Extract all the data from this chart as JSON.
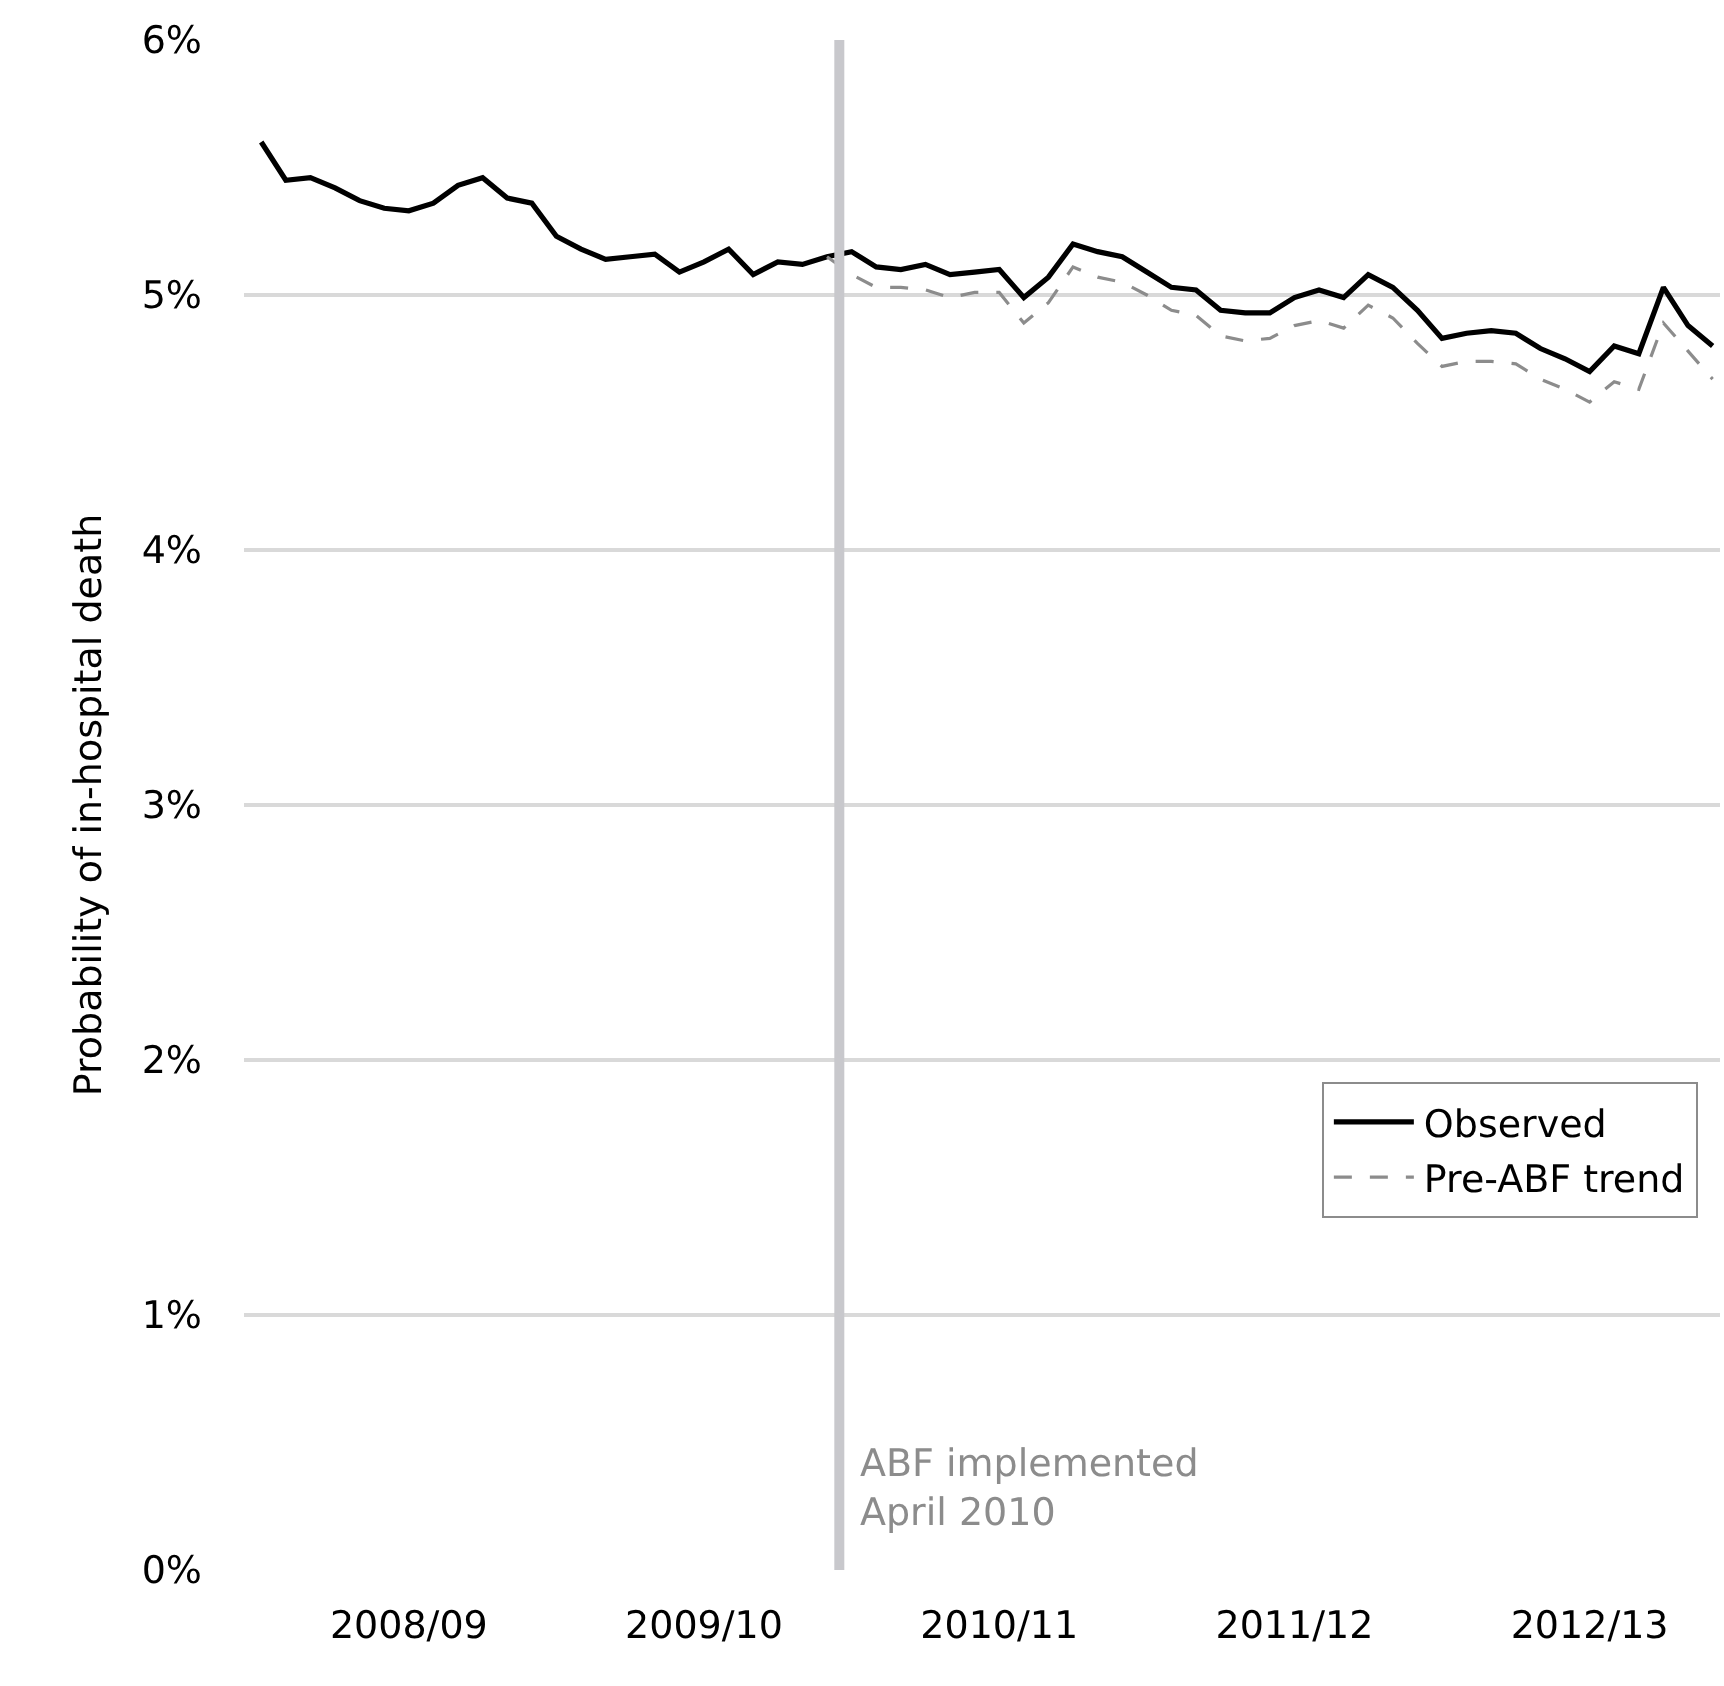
{
  "chart_data": {
    "type": "line",
    "ylabel": "Probability of in-hospital death",
    "categories": [
      null,
      null,
      null,
      null,
      null,
      null,
      "2008/09",
      null,
      null,
      null,
      null,
      null,
      null,
      null,
      null,
      null,
      null,
      null,
      "2009/10",
      null,
      null,
      null,
      null,
      null,
      null,
      null,
      null,
      null,
      null,
      null,
      "2010/11",
      null,
      null,
      null,
      null,
      null,
      null,
      null,
      null,
      null,
      null,
      null,
      "2011/12",
      null,
      null,
      null,
      null,
      null,
      null,
      null,
      null,
      null,
      null,
      null,
      "2012/13",
      null,
      null,
      null,
      null,
      null
    ],
    "ylim": [
      0,
      6
    ],
    "yticks": [
      {
        "value": 0,
        "label": "0%"
      },
      {
        "value": 1,
        "label": "1%"
      },
      {
        "value": 2,
        "label": "2%"
      },
      {
        "value": 3,
        "label": "3%"
      },
      {
        "value": 4,
        "label": "4%"
      },
      {
        "value": 5,
        "label": "5%"
      },
      {
        "value": 6,
        "label": "6%"
      }
    ],
    "grid": "y",
    "legend": "bottom right",
    "marker": "none",
    "ref_lines": [
      {
        "axis": "x",
        "label": "ABF implemented\nApril 2010",
        "color": "#c8c8cc"
      }
    ],
    "series": [
      {
        "name": "Observed",
        "color": "#000000",
        "line_style": "solid",
        "values": [
          5.6,
          5.45,
          5.46,
          5.42,
          5.37,
          5.34,
          5.33,
          5.36,
          5.43,
          5.46,
          5.38,
          5.36,
          5.23,
          5.18,
          5.14,
          5.15,
          5.16,
          5.09,
          5.13,
          5.18,
          5.08,
          5.13,
          5.12,
          5.15,
          5.17,
          5.11,
          5.1,
          5.12,
          5.08,
          5.09,
          5.1,
          4.99,
          5.07,
          5.2,
          5.17,
          5.15,
          5.09,
          5.03,
          5.02,
          4.94,
          4.93,
          4.93,
          4.99,
          5.02,
          4.99,
          5.08,
          5.03,
          4.94,
          4.83,
          4.85,
          4.86,
          4.85,
          4.79,
          4.75,
          4.7,
          4.8,
          4.77,
          5.03,
          4.88,
          4.8
        ]
      },
      {
        "name": "Pre-ABF trend",
        "color": "#8c8c8c",
        "line_style": "dashed",
        "values": [
          null,
          null,
          null,
          null,
          null,
          null,
          null,
          null,
          null,
          null,
          null,
          null,
          null,
          null,
          null,
          null,
          null,
          null,
          null,
          null,
          null,
          null,
          null,
          5.15,
          5.08,
          5.03,
          5.03,
          5.02,
          4.99,
          5.01,
          5.01,
          4.89,
          4.97,
          5.11,
          5.07,
          5.05,
          5.0,
          4.94,
          4.92,
          4.84,
          4.82,
          4.83,
          4.88,
          4.9,
          4.87,
          4.96,
          4.91,
          4.81,
          4.72,
          4.74,
          4.74,
          4.73,
          4.67,
          4.63,
          4.58,
          4.66,
          4.63,
          4.89,
          4.78,
          4.67
        ]
      }
    ]
  }
}
